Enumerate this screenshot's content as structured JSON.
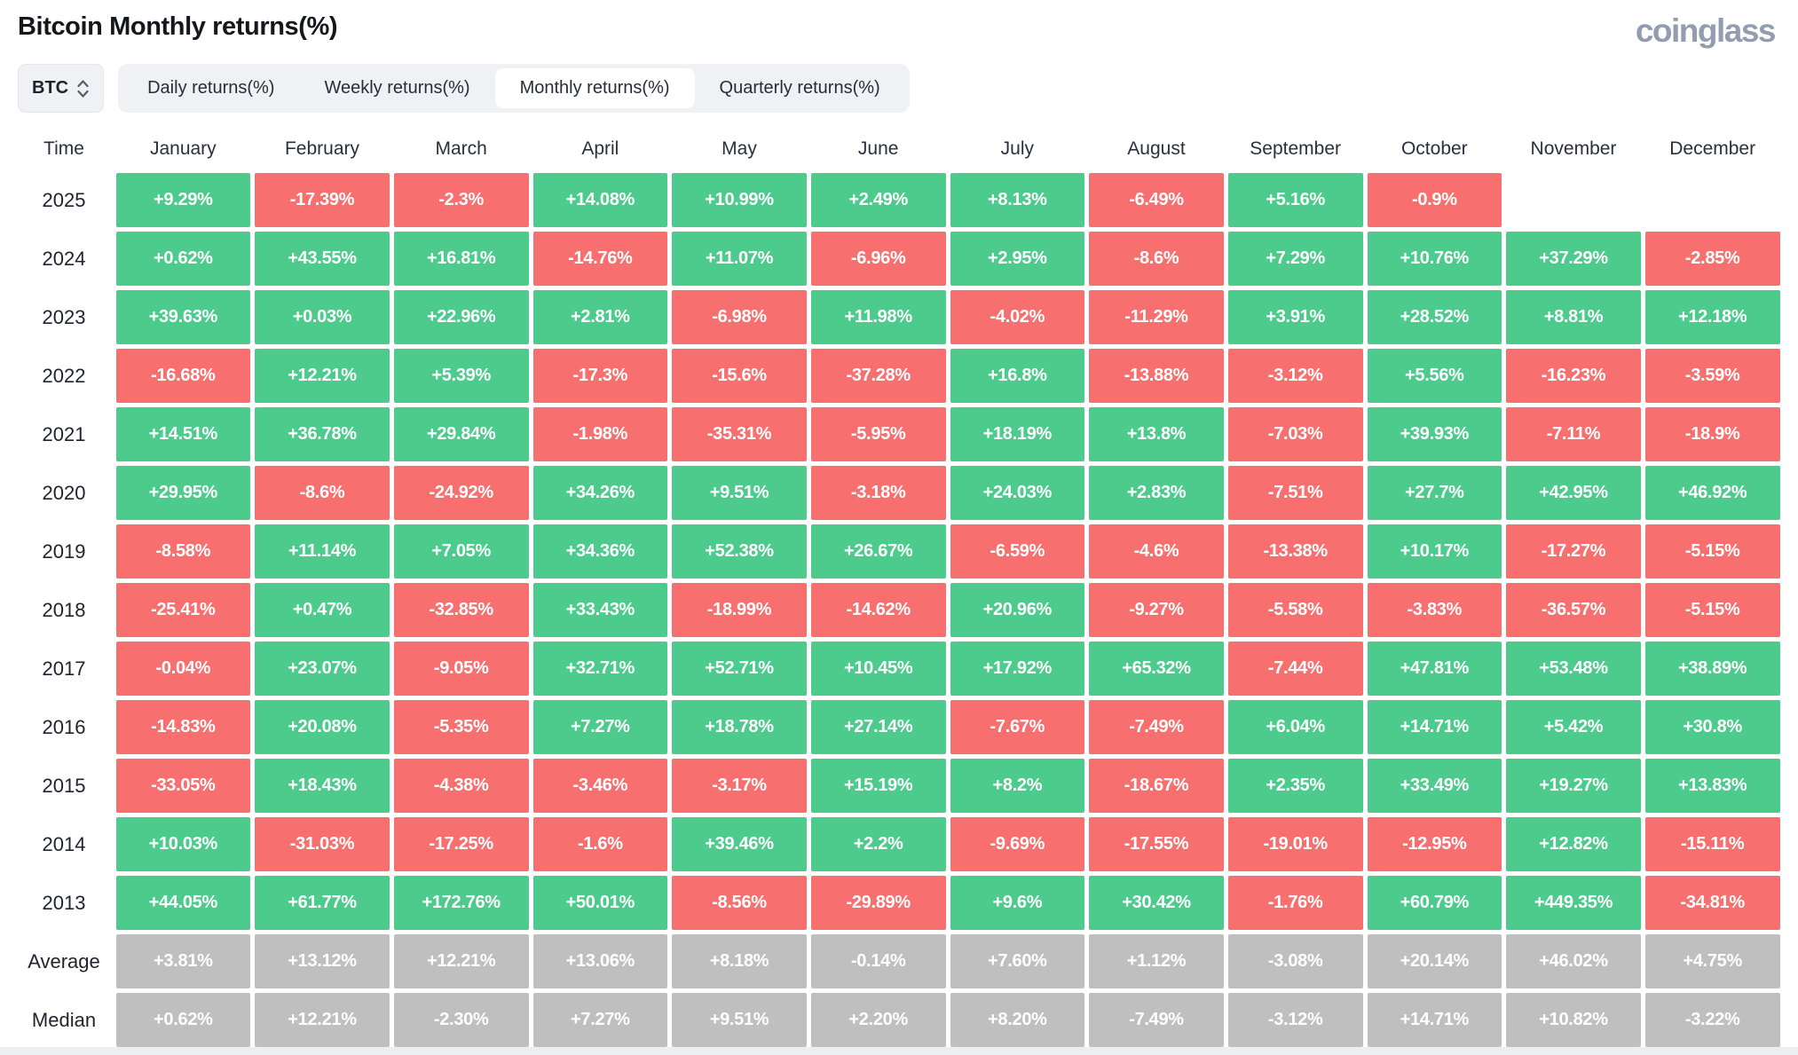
{
  "header": {
    "title": "Bitcoin Monthly returns(%)",
    "logo": "coinglass"
  },
  "toolbar": {
    "coin": "BTC",
    "tabs": [
      {
        "label": "Daily returns(%)",
        "active": false
      },
      {
        "label": "Weekly returns(%)",
        "active": false
      },
      {
        "label": "Monthly returns(%)",
        "active": true
      },
      {
        "label": "Quarterly returns(%)",
        "active": false
      }
    ]
  },
  "colors": {
    "positive": "#4dcb8d",
    "negative": "#f7706f",
    "summary": "#bfbfbf"
  },
  "chart_data": {
    "type": "heatmap",
    "title": "Bitcoin Monthly returns(%)",
    "time_header": "Time",
    "months": [
      "January",
      "February",
      "March",
      "April",
      "May",
      "June",
      "July",
      "August",
      "September",
      "October",
      "November",
      "December"
    ],
    "rows": [
      {
        "label": "2025",
        "type": "year",
        "values": [
          "+9.29%",
          "-17.39%",
          "-2.3%",
          "+14.08%",
          "+10.99%",
          "+2.49%",
          "+8.13%",
          "-6.49%",
          "+5.16%",
          "-0.9%",
          "",
          ""
        ]
      },
      {
        "label": "2024",
        "type": "year",
        "values": [
          "+0.62%",
          "+43.55%",
          "+16.81%",
          "-14.76%",
          "+11.07%",
          "-6.96%",
          "+2.95%",
          "-8.6%",
          "+7.29%",
          "+10.76%",
          "+37.29%",
          "-2.85%"
        ]
      },
      {
        "label": "2023",
        "type": "year",
        "values": [
          "+39.63%",
          "+0.03%",
          "+22.96%",
          "+2.81%",
          "-6.98%",
          "+11.98%",
          "-4.02%",
          "-11.29%",
          "+3.91%",
          "+28.52%",
          "+8.81%",
          "+12.18%"
        ]
      },
      {
        "label": "2022",
        "type": "year",
        "values": [
          "-16.68%",
          "+12.21%",
          "+5.39%",
          "-17.3%",
          "-15.6%",
          "-37.28%",
          "+16.8%",
          "-13.88%",
          "-3.12%",
          "+5.56%",
          "-16.23%",
          "-3.59%"
        ]
      },
      {
        "label": "2021",
        "type": "year",
        "values": [
          "+14.51%",
          "+36.78%",
          "+29.84%",
          "-1.98%",
          "-35.31%",
          "-5.95%",
          "+18.19%",
          "+13.8%",
          "-7.03%",
          "+39.93%",
          "-7.11%",
          "-18.9%"
        ]
      },
      {
        "label": "2020",
        "type": "year",
        "values": [
          "+29.95%",
          "-8.6%",
          "-24.92%",
          "+34.26%",
          "+9.51%",
          "-3.18%",
          "+24.03%",
          "+2.83%",
          "-7.51%",
          "+27.7%",
          "+42.95%",
          "+46.92%"
        ]
      },
      {
        "label": "2019",
        "type": "year",
        "values": [
          "-8.58%",
          "+11.14%",
          "+7.05%",
          "+34.36%",
          "+52.38%",
          "+26.67%",
          "-6.59%",
          "-4.6%",
          "-13.38%",
          "+10.17%",
          "-17.27%",
          "-5.15%"
        ]
      },
      {
        "label": "2018",
        "type": "year",
        "values": [
          "-25.41%",
          "+0.47%",
          "-32.85%",
          "+33.43%",
          "-18.99%",
          "-14.62%",
          "+20.96%",
          "-9.27%",
          "-5.58%",
          "-3.83%",
          "-36.57%",
          "-5.15%"
        ]
      },
      {
        "label": "2017",
        "type": "year",
        "values": [
          "-0.04%",
          "+23.07%",
          "-9.05%",
          "+32.71%",
          "+52.71%",
          "+10.45%",
          "+17.92%",
          "+65.32%",
          "-7.44%",
          "+47.81%",
          "+53.48%",
          "+38.89%"
        ]
      },
      {
        "label": "2016",
        "type": "year",
        "values": [
          "-14.83%",
          "+20.08%",
          "-5.35%",
          "+7.27%",
          "+18.78%",
          "+27.14%",
          "-7.67%",
          "-7.49%",
          "+6.04%",
          "+14.71%",
          "+5.42%",
          "+30.8%"
        ]
      },
      {
        "label": "2015",
        "type": "year",
        "values": [
          "-33.05%",
          "+18.43%",
          "-4.38%",
          "-3.46%",
          "-3.17%",
          "+15.19%",
          "+8.2%",
          "-18.67%",
          "+2.35%",
          "+33.49%",
          "+19.27%",
          "+13.83%"
        ]
      },
      {
        "label": "2014",
        "type": "year",
        "values": [
          "+10.03%",
          "-31.03%",
          "-17.25%",
          "-1.6%",
          "+39.46%",
          "+2.2%",
          "-9.69%",
          "-17.55%",
          "-19.01%",
          "-12.95%",
          "+12.82%",
          "-15.11%"
        ]
      },
      {
        "label": "2013",
        "type": "year",
        "values": [
          "+44.05%",
          "+61.77%",
          "+172.76%",
          "+50.01%",
          "-8.56%",
          "-29.89%",
          "+9.6%",
          "+30.42%",
          "-1.76%",
          "+60.79%",
          "+449.35%",
          "-34.81%"
        ]
      },
      {
        "label": "Average",
        "type": "summary",
        "values": [
          "+3.81%",
          "+13.12%",
          "+12.21%",
          "+13.06%",
          "+8.18%",
          "-0.14%",
          "+7.60%",
          "+1.12%",
          "-3.08%",
          "+20.14%",
          "+46.02%",
          "+4.75%"
        ]
      },
      {
        "label": "Median",
        "type": "summary",
        "values": [
          "+0.62%",
          "+12.21%",
          "-2.30%",
          "+7.27%",
          "+9.51%",
          "+2.20%",
          "+8.20%",
          "-7.49%",
          "-3.12%",
          "+14.71%",
          "+10.82%",
          "-3.22%"
        ]
      }
    ]
  }
}
